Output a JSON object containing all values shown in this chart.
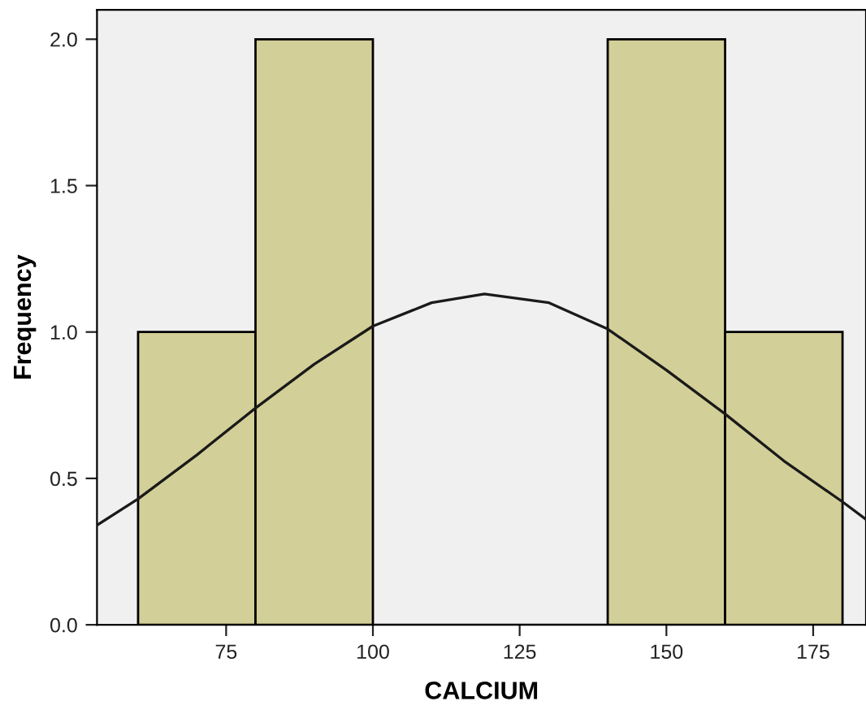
{
  "chart_data": {
    "type": "histogram",
    "xlabel": "CALCIUM",
    "ylabel": "Frequency",
    "bins": [
      60,
      80,
      100,
      120,
      140,
      160,
      180
    ],
    "values": [
      1,
      2,
      0,
      0,
      2,
      1
    ],
    "color": "#d3cf98",
    "xlim": [
      53,
      184
    ],
    "xticks": [
      75,
      100,
      125,
      150,
      175
    ],
    "ylim": [
      0,
      2.1
    ],
    "yticks": [
      {
        "value": 0,
        "label": "0.0"
      },
      {
        "value": 0.5,
        "label": "0.5"
      },
      {
        "value": 1,
        "label": "1.0"
      },
      {
        "value": 1.5,
        "label": "1.5"
      },
      {
        "value": 2,
        "label": "2.0"
      }
    ],
    "grid": false,
    "legend": false,
    "series": [
      {
        "type": "line",
        "color": "#1a1a1a",
        "x": [
          53,
          60,
          70,
          80,
          90,
          100,
          110,
          119,
          130,
          140,
          150,
          160,
          170,
          180,
          184
        ],
        "values": [
          0.34,
          0.43,
          0.58,
          0.74,
          0.89,
          1.02,
          1.1,
          1.13,
          1.1,
          1.01,
          0.87,
          0.72,
          0.56,
          0.42,
          0.36
        ]
      }
    ]
  }
}
